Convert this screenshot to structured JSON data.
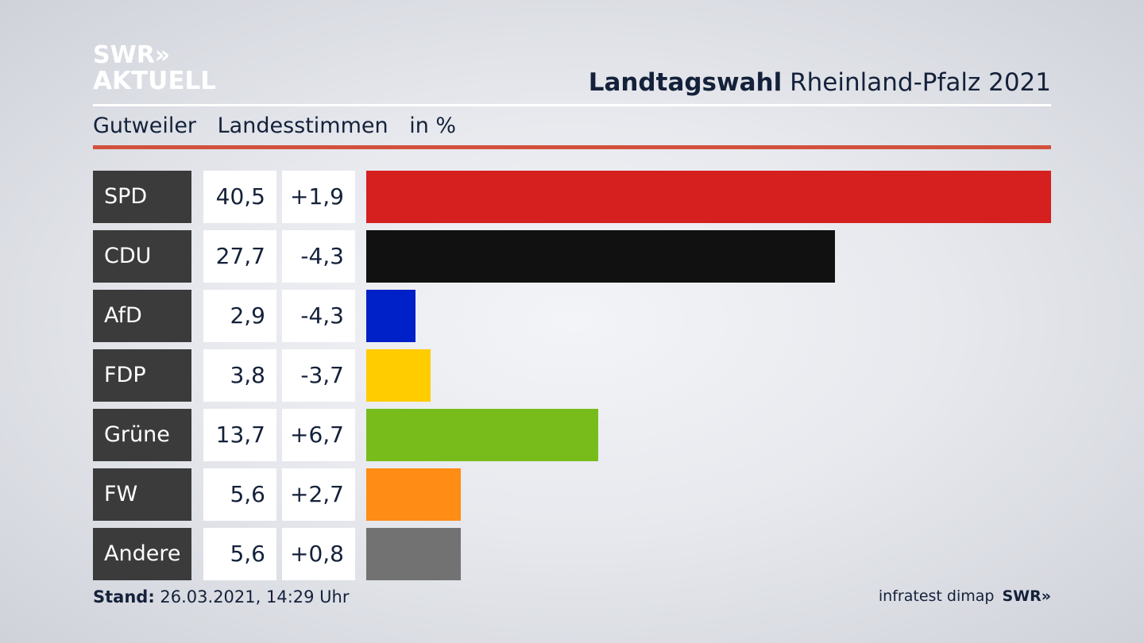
{
  "logo": {
    "line1": "SWR»",
    "line2": "AKTUELL"
  },
  "header": {
    "title_bold": "Landtagswahl",
    "title_regular": " Rheinland-Pfalz 2021"
  },
  "subheader": {
    "place": "Gutweiler",
    "vote_type": "Landesstimmen",
    "unit": "in %"
  },
  "chart_data": {
    "type": "bar",
    "orientation": "horizontal",
    "categories": [
      "SPD",
      "CDU",
      "AfD",
      "FDP",
      "Grüne",
      "FW",
      "Andere"
    ],
    "values": [
      40.5,
      27.7,
      2.9,
      3.8,
      13.7,
      5.6,
      5.6
    ],
    "value_labels": [
      "40,5",
      "27,7",
      "2,9",
      "3,8",
      "13,7",
      "5,6",
      "5,6"
    ],
    "change_labels": [
      "+1,9",
      "-4,3",
      "-4,3",
      "-3,7",
      "+6,7",
      "+2,7",
      "+0,8"
    ],
    "colors": [
      "#d61f1f",
      "#111111",
      "#0020c8",
      "#ffcc00",
      "#78bc1c",
      "#ff8c14",
      "#727272"
    ],
    "xlim": [
      0,
      40.5
    ]
  },
  "footer": {
    "stand_label": "Stand:",
    "stand_value": " 26.03.2021, 14:29 Uhr",
    "source": "infratest dimap",
    "source_logo": "SWR»"
  }
}
